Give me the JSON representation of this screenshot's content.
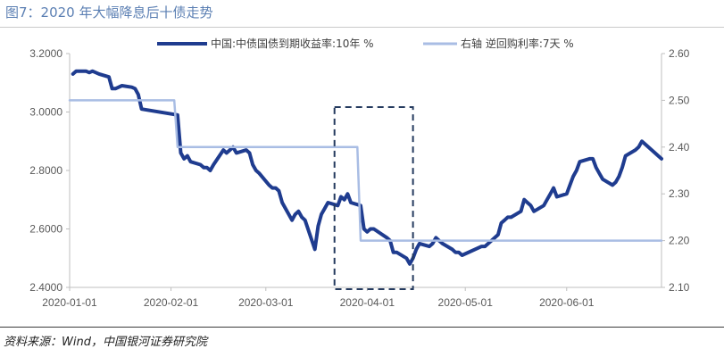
{
  "header": {
    "title": "图7：2020 年大幅降息后十债走势"
  },
  "footer": {
    "source": "资料来源：Wind，中国银河证券研究院"
  },
  "chart_data": {
    "type": "line",
    "title": "图7：2020 年大幅降息后十债走势",
    "x_ticks": [
      "2020-01-01",
      "2020-02-01",
      "2020-03-01",
      "2020-04-01",
      "2020-05-01",
      "2020-06-01"
    ],
    "y_left": {
      "ylim": [
        2.4,
        3.2
      ],
      "ticks": [
        "3.2000",
        "3.0000",
        "2.8000",
        "2.6000",
        "2.4000"
      ]
    },
    "y_right": {
      "ylim": [
        2.1,
        2.6
      ],
      "ticks": [
        "2.60",
        "2.50",
        "2.40",
        "2.30",
        "2.20",
        "2.10"
      ]
    },
    "legend_position": "top",
    "annotation": "dashed box around 2020-03-30 policy rate cut",
    "series": [
      {
        "name": "中国:中债国债到期收益率:10年  %",
        "axis": "left",
        "color": "#1f3c8f",
        "points": [
          [
            "2020-01-02",
            3.13
          ],
          [
            "2020-01-03",
            3.14
          ],
          [
            "2020-01-06",
            3.14
          ],
          [
            "2020-01-07",
            3.135
          ],
          [
            "2020-01-08",
            3.14
          ],
          [
            "2020-01-09",
            3.135
          ],
          [
            "2020-01-10",
            3.13
          ],
          [
            "2020-01-13",
            3.12
          ],
          [
            "2020-01-14",
            3.08
          ],
          [
            "2020-01-15",
            3.08
          ],
          [
            "2020-01-16",
            3.085
          ],
          [
            "2020-01-17",
            3.09
          ],
          [
            "2020-01-20",
            3.085
          ],
          [
            "2020-01-21",
            3.08
          ],
          [
            "2020-01-22",
            3.06
          ],
          [
            "2020-01-23",
            3.01
          ],
          [
            "2020-02-03",
            2.99
          ],
          [
            "2020-02-04",
            2.86
          ],
          [
            "2020-02-05",
            2.84
          ],
          [
            "2020-02-06",
            2.85
          ],
          [
            "2020-02-07",
            2.83
          ],
          [
            "2020-02-10",
            2.82
          ],
          [
            "2020-02-11",
            2.81
          ],
          [
            "2020-02-12",
            2.81
          ],
          [
            "2020-02-13",
            2.8
          ],
          [
            "2020-02-14",
            2.82
          ],
          [
            "2020-02-17",
            2.87
          ],
          [
            "2020-02-18",
            2.86
          ],
          [
            "2020-02-19",
            2.87
          ],
          [
            "2020-02-20",
            2.88
          ],
          [
            "2020-02-21",
            2.86
          ],
          [
            "2020-02-24",
            2.87
          ],
          [
            "2020-02-25",
            2.86
          ],
          [
            "2020-02-26",
            2.82
          ],
          [
            "2020-02-27",
            2.8
          ],
          [
            "2020-02-28",
            2.79
          ],
          [
            "2020-03-02",
            2.75
          ],
          [
            "2020-03-03",
            2.74
          ],
          [
            "2020-03-04",
            2.74
          ],
          [
            "2020-03-05",
            2.73
          ],
          [
            "2020-03-06",
            2.69
          ],
          [
            "2020-03-09",
            2.63
          ],
          [
            "2020-03-10",
            2.65
          ],
          [
            "2020-03-11",
            2.66
          ],
          [
            "2020-03-12",
            2.64
          ],
          [
            "2020-03-13",
            2.63
          ],
          [
            "2020-03-16",
            2.53
          ],
          [
            "2020-03-17",
            2.61
          ],
          [
            "2020-03-18",
            2.65
          ],
          [
            "2020-03-19",
            2.67
          ],
          [
            "2020-03-20",
            2.69
          ],
          [
            "2020-03-23",
            2.68
          ],
          [
            "2020-03-24",
            2.71
          ],
          [
            "2020-03-25",
            2.7
          ],
          [
            "2020-03-26",
            2.72
          ],
          [
            "2020-03-27",
            2.69
          ],
          [
            "2020-03-30",
            2.68
          ],
          [
            "2020-03-31",
            2.6
          ],
          [
            "2020-04-01",
            2.59
          ],
          [
            "2020-04-02",
            2.6
          ],
          [
            "2020-04-03",
            2.6
          ],
          [
            "2020-04-07",
            2.57
          ],
          [
            "2020-04-08",
            2.56
          ],
          [
            "2020-04-09",
            2.52
          ],
          [
            "2020-04-10",
            2.52
          ],
          [
            "2020-04-13",
            2.5
          ],
          [
            "2020-04-14",
            2.48
          ],
          [
            "2020-04-15",
            2.5
          ],
          [
            "2020-04-16",
            2.53
          ],
          [
            "2020-04-17",
            2.55
          ],
          [
            "2020-04-20",
            2.54
          ],
          [
            "2020-04-21",
            2.55
          ],
          [
            "2020-04-22",
            2.57
          ],
          [
            "2020-04-23",
            2.56
          ],
          [
            "2020-04-24",
            2.55
          ],
          [
            "2020-04-27",
            2.53
          ],
          [
            "2020-04-28",
            2.52
          ],
          [
            "2020-04-29",
            2.52
          ],
          [
            "2020-04-30",
            2.51
          ],
          [
            "2020-05-06",
            2.54
          ],
          [
            "2020-05-07",
            2.54
          ],
          [
            "2020-05-08",
            2.55
          ],
          [
            "2020-05-11",
            2.58
          ],
          [
            "2020-05-12",
            2.62
          ],
          [
            "2020-05-13",
            2.63
          ],
          [
            "2020-05-14",
            2.64
          ],
          [
            "2020-05-15",
            2.64
          ],
          [
            "2020-05-18",
            2.66
          ],
          [
            "2020-05-19",
            2.7
          ],
          [
            "2020-05-20",
            2.69
          ],
          [
            "2020-05-21",
            2.68
          ],
          [
            "2020-05-22",
            2.66
          ],
          [
            "2020-05-25",
            2.68
          ],
          [
            "2020-05-26",
            2.7
          ],
          [
            "2020-05-27",
            2.72
          ],
          [
            "2020-05-28",
            2.74
          ],
          [
            "2020-05-29",
            2.71
          ],
          [
            "2020-06-01",
            2.72
          ],
          [
            "2020-06-02",
            2.75
          ],
          [
            "2020-06-03",
            2.78
          ],
          [
            "2020-06-04",
            2.8
          ],
          [
            "2020-06-05",
            2.83
          ],
          [
            "2020-06-08",
            2.84
          ],
          [
            "2020-06-09",
            2.84
          ],
          [
            "2020-06-10",
            2.81
          ],
          [
            "2020-06-11",
            2.79
          ],
          [
            "2020-06-12",
            2.77
          ],
          [
            "2020-06-15",
            2.75
          ],
          [
            "2020-06-16",
            2.76
          ],
          [
            "2020-06-17",
            2.78
          ],
          [
            "2020-06-18",
            2.81
          ],
          [
            "2020-06-19",
            2.85
          ],
          [
            "2020-06-22",
            2.87
          ],
          [
            "2020-06-23",
            2.88
          ],
          [
            "2020-06-24",
            2.9
          ],
          [
            "2020-06-28",
            2.86
          ],
          [
            "2020-06-29",
            2.85
          ],
          [
            "2020-06-30",
            2.84
          ]
        ]
      },
      {
        "name": "右轴  逆回购利率:7天  %",
        "axis": "right",
        "color": "#a9bde4",
        "points": [
          [
            "2020-01-01",
            2.5
          ],
          [
            "2020-02-02",
            2.5
          ],
          [
            "2020-02-03",
            2.4
          ],
          [
            "2020-03-29",
            2.4
          ],
          [
            "2020-03-30",
            2.2
          ],
          [
            "2020-06-30",
            2.2
          ]
        ]
      }
    ]
  }
}
